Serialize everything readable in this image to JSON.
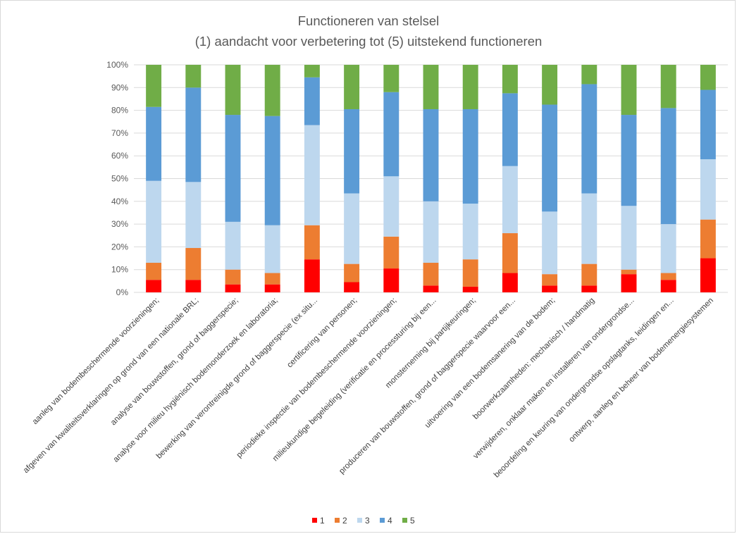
{
  "chart_data": {
    "type": "bar",
    "stacked": "percent",
    "title": "Functioneren van stelsel",
    "subtitle": "(1) aandacht voor verbetering tot (5) uitstekend functioneren",
    "xlabel": "",
    "ylabel": "",
    "ylim": [
      0,
      100
    ],
    "y_ticks": [
      "0%",
      "10%",
      "20%",
      "30%",
      "40%",
      "50%",
      "60%",
      "70%",
      "80%",
      "90%",
      "100%"
    ],
    "grid": true,
    "legend_position": "bottom",
    "categories": [
      "aanleg van bodembeschermende voorzieningen;",
      "afgeven van kwaliteitsverklaringen op grond van een nationale BRL;",
      "analyse van bouwstoffen, grond of baggerspecie;",
      "analyse voor milieu hygiënisch bodemonderzoek en laboratoria;",
      "bewerking van verontreinigde grond of baggerspecie (ex situ...",
      "certificering van personen;",
      "periodieke inspectie van bodembeschermende voorzieningen;",
      "milieukundige begeleiding (verificatie en processturing bij een...",
      "monsterneming bij partijkeuringen;",
      "produceren van bouwstoffen, grond of baggerspecie waarvoor een...",
      "uitvoering van een bodemsanering van de bodem;",
      "boorwerkzaamheden: mechanisch / handmatig",
      "verwijderen, onklaar maken en installeren van ondergrondse...",
      "beoordeling en keuring van ondergrondse opslagtanks, leidingen en...",
      "ontwerp, aanleg en beheer van bodemenergiesystemen"
    ],
    "series": [
      {
        "name": "1",
        "color": "#ff0000",
        "values": [
          5.5,
          5.5,
          3.5,
          3.5,
          14.5,
          4.5,
          10.5,
          3.0,
          2.5,
          8.5,
          3.0,
          3.0,
          8.0,
          5.5,
          15.0
        ]
      },
      {
        "name": "2",
        "color": "#ed7d31",
        "values": [
          7.5,
          14.0,
          6.5,
          5.0,
          15.0,
          8.0,
          14.0,
          10.0,
          12.0,
          17.5,
          5.0,
          9.5,
          2.0,
          3.0,
          17.0
        ]
      },
      {
        "name": "3",
        "color": "#bdd7ee",
        "values": [
          36.0,
          29.0,
          21.0,
          21.0,
          44.0,
          31.0,
          26.5,
          27.0,
          24.5,
          29.5,
          27.5,
          31.0,
          28.0,
          21.5,
          26.5
        ]
      },
      {
        "name": "4",
        "color": "#5b9bd5",
        "values": [
          32.5,
          41.5,
          47.0,
          48.0,
          21.0,
          37.0,
          37.0,
          40.5,
          41.5,
          32.0,
          47.0,
          48.0,
          40.0,
          51.0,
          30.5
        ]
      },
      {
        "name": "5",
        "color": "#70ad47",
        "values": [
          18.5,
          10.0,
          22.0,
          22.5,
          5.5,
          19.5,
          12.0,
          19.5,
          19.5,
          12.5,
          17.5,
          8.5,
          22.0,
          19.0,
          11.0
        ]
      }
    ]
  }
}
